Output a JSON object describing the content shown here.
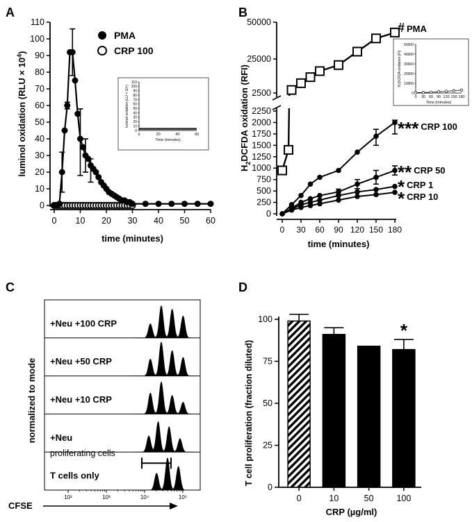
{
  "panel_labels": {
    "a": "A",
    "b": "B",
    "c": "C",
    "d": "D"
  },
  "chart_data": [
    {
      "panel": "A",
      "type": "line",
      "xlabel": "time (minutes)",
      "ylabel_main": "luminol oxidation (RLU × 10",
      "ylabel_sup": "4",
      "ylabel_tail": ")",
      "xlim": [
        0,
        60
      ],
      "ylim": [
        0,
        110
      ],
      "xticks": [
        0,
        10,
        20,
        30,
        40,
        50,
        60
      ],
      "yticks": [
        0,
        10,
        20,
        30,
        40,
        50,
        60,
        70,
        80,
        90,
        100,
        110
      ],
      "legend": [
        "PMA",
        "CRP 100"
      ],
      "series": [
        {
          "name": "PMA",
          "marker": "filled",
          "x": [
            0,
            1,
            2,
            3,
            4,
            5,
            6,
            7,
            8,
            9,
            10,
            11,
            12,
            13,
            14,
            15,
            16,
            17,
            18,
            19,
            20,
            21,
            22,
            23,
            24,
            25,
            26,
            27,
            28,
            29,
            30,
            35,
            40,
            45,
            50,
            55,
            60
          ],
          "y": [
            0,
            0,
            1,
            20,
            45,
            60,
            92,
            92,
            75,
            55,
            40,
            35,
            30,
            28,
            24,
            22,
            20,
            17,
            14,
            12,
            10,
            8,
            7,
            6,
            5,
            4,
            3,
            3,
            2,
            2,
            1,
            1,
            1,
            1,
            1,
            1,
            1
          ],
          "err_x": [
            3,
            5,
            7,
            10,
            12,
            14
          ],
          "err_lo": [
            8,
            58,
            78,
            18,
            20,
            14
          ],
          "err_hi": [
            32,
            62,
            106,
            58,
            40,
            28
          ]
        },
        {
          "name": "CRP 100",
          "marker": "open",
          "x": [
            0,
            1,
            2,
            3,
            4,
            5,
            6,
            7,
            8,
            9,
            10,
            11,
            12,
            13,
            14,
            15,
            16,
            17,
            18,
            19,
            20,
            21,
            22,
            23,
            24,
            25,
            26,
            27,
            28,
            29,
            30
          ],
          "y": [
            0,
            0,
            0,
            0,
            0,
            0,
            0,
            0,
            0,
            0,
            0,
            0,
            0,
            0,
            0,
            0,
            0,
            0,
            0,
            0,
            0,
            0,
            0,
            0,
            0,
            0,
            0,
            0,
            0,
            0,
            0
          ]
        }
      ],
      "inset": {
        "ylabel": "luminol oxidation (LU × 10⁴)",
        "xlabel": "Time (minutes)",
        "yticks": [
          0,
          10,
          20,
          30,
          40,
          50,
          60,
          70,
          80,
          90,
          100,
          110
        ],
        "xticks": [
          0,
          20,
          40,
          60
        ]
      }
    },
    {
      "panel": "B",
      "type": "line",
      "xlabel": "time (minutes)",
      "ylabel_h": "H",
      "ylabel_sub": "2",
      "ylabel_rest": "DCFDA oxidation (RFI)",
      "xlim": [
        0,
        180
      ],
      "axis_break": {
        "lower_max": 2250,
        "upper_min": 2500,
        "upper_max": 50000
      },
      "xticks": [
        0,
        30,
        60,
        90,
        120,
        150,
        180
      ],
      "yticks_lower": [
        0,
        250,
        500,
        750,
        1000,
        1250,
        1500,
        1750,
        2000,
        2250
      ],
      "yticks_upper": [
        2500,
        25000,
        50000
      ],
      "series": [
        {
          "name": "PMA",
          "marker": "open-square",
          "label": "PMA",
          "stars": "#",
          "x": [
            0,
            10,
            15,
            30,
            45,
            60,
            90,
            120,
            150,
            180
          ],
          "y": [
            950,
            1400,
            4500,
            9000,
            13000,
            17000,
            21000,
            30000,
            39000,
            43000
          ]
        },
        {
          "name": "CRP 100",
          "marker": "filled",
          "label": "CRP 100",
          "stars": "***",
          "x": [
            0,
            15,
            30,
            45,
            60,
            90,
            120,
            150,
            180
          ],
          "y": [
            0,
            200,
            400,
            650,
            800,
            950,
            1350,
            1700,
            2000
          ],
          "err_x": [
            150,
            180
          ],
          "err_lo": [
            1500,
            1750
          ],
          "err_hi": [
            1850,
            2050
          ]
        },
        {
          "name": "CRP 50",
          "marker": "filled",
          "label": "CRP 50",
          "stars": "**",
          "x": [
            0,
            15,
            30,
            45,
            60,
            90,
            120,
            150,
            180
          ],
          "y": [
            0,
            120,
            250,
            330,
            400,
            480,
            650,
            800,
            950
          ],
          "err_x": [
            90,
            120,
            150,
            180
          ],
          "err_lo": [
            420,
            550,
            650,
            850
          ],
          "err_hi": [
            540,
            750,
            950,
            1050
          ]
        },
        {
          "name": "CRP 1",
          "marker": "filled",
          "label": "CRP 1",
          "stars": "*",
          "x": [
            0,
            15,
            30,
            45,
            60,
            90,
            120,
            150,
            180
          ],
          "y": [
            0,
            100,
            200,
            250,
            300,
            400,
            480,
            530,
            600
          ]
        },
        {
          "name": "CRP 10",
          "marker": "filled",
          "label": "CRP 10",
          "stars": "*",
          "x": [
            0,
            15,
            30,
            45,
            60,
            90,
            120,
            150,
            180
          ],
          "y": [
            0,
            80,
            140,
            180,
            220,
            300,
            380,
            420,
            470
          ]
        }
      ],
      "inset": {
        "ylabel": "H₂DCFDA oxidation (FI)",
        "xlabel": "Time (minutes)",
        "yticks": [
          0,
          10000,
          20000,
          30000,
          40000,
          50000
        ],
        "xticks": [
          0,
          30,
          60,
          90,
          120,
          150,
          180
        ]
      }
    },
    {
      "panel": "C",
      "type": "histogram-overlay",
      "ylabel": "normalized to mode",
      "xlabel": "CFSE",
      "xticks": [
        "10²",
        "10³",
        "10⁴",
        "10⁵"
      ],
      "gate_label": "proliferating cells",
      "lanes": [
        {
          "label": "+Neu +100 CRP",
          "peaks": [
            [
              0.68,
              0.42
            ],
            [
              0.75,
              0.95
            ],
            [
              0.82,
              0.85
            ],
            [
              0.89,
              0.65
            ]
          ]
        },
        {
          "label": "+Neu +50 CRP",
          "peaks": [
            [
              0.68,
              0.5
            ],
            [
              0.75,
              1.0
            ],
            [
              0.82,
              0.75
            ],
            [
              0.89,
              0.55
            ]
          ]
        },
        {
          "label": "+Neu +10 CRP",
          "peaks": [
            [
              0.68,
              0.62
            ],
            [
              0.75,
              0.95
            ],
            [
              0.82,
              0.55
            ],
            [
              0.89,
              0.35
            ]
          ]
        },
        {
          "label": "+Neu",
          "peaks": [
            [
              0.67,
              0.48
            ],
            [
              0.73,
              0.9
            ],
            [
              0.8,
              0.75
            ],
            [
              0.87,
              0.4
            ]
          ]
        },
        {
          "label": "T cells only",
          "peaks": [
            [
              0.72,
              0.5
            ],
            [
              0.79,
              0.95
            ],
            [
              0.86,
              0.7
            ]
          ]
        }
      ]
    },
    {
      "panel": "D",
      "type": "bar",
      "ylabel": "T cell proliferation (fraction diluted)",
      "xlabel": "CRP (µg/ml)",
      "categories": [
        "0",
        "10",
        "50",
        "100"
      ],
      "values": [
        99,
        91,
        84,
        82
      ],
      "errors": [
        4,
        4,
        0,
        6
      ],
      "patterns": [
        "hatched",
        "solid",
        "solid",
        "solid"
      ],
      "ylim": [
        0,
        100
      ],
      "yticks": [
        0,
        25,
        50,
        75,
        100
      ],
      "significance": [
        {
          "category": "100",
          "mark": "*"
        }
      ]
    }
  ]
}
